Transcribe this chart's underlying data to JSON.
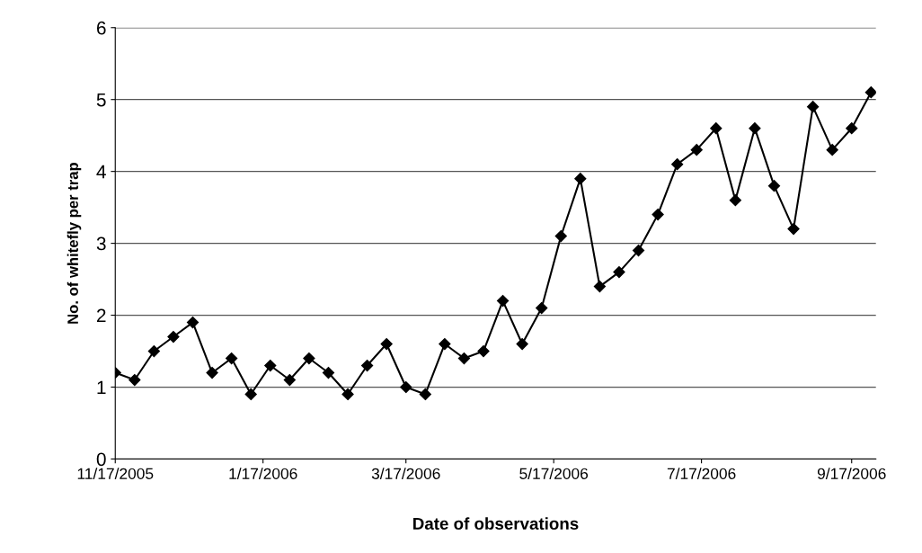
{
  "chart_data": {
    "type": "line",
    "xlabel": "Date of observations",
    "ylabel": "No. of whitefly per trap",
    "x": [
      "2005-11-17",
      "2005-11-25",
      "2005-12-03",
      "2005-12-11",
      "2005-12-19",
      "2005-12-27",
      "2006-01-04",
      "2006-01-12",
      "2006-01-20",
      "2006-01-28",
      "2006-02-05",
      "2006-02-13",
      "2006-02-21",
      "2006-03-01",
      "2006-03-09",
      "2006-03-17",
      "2006-03-25",
      "2006-04-02",
      "2006-04-10",
      "2006-04-18",
      "2006-04-26",
      "2006-05-04",
      "2006-05-12",
      "2006-05-20",
      "2006-05-28",
      "2006-06-05",
      "2006-06-13",
      "2006-06-21",
      "2006-06-29",
      "2006-07-07",
      "2006-07-15",
      "2006-07-23",
      "2006-07-31",
      "2006-08-08",
      "2006-08-16",
      "2006-08-24",
      "2006-09-01",
      "2006-09-09",
      "2006-09-17",
      "2006-09-25"
    ],
    "series": [
      {
        "color": "#000000",
        "values": [
          1.2,
          1.1,
          1.5,
          1.7,
          1.9,
          1.2,
          1.4,
          0.9,
          1.3,
          1.1,
          1.4,
          1.2,
          0.9,
          1.3,
          1.6,
          1.0,
          0.9,
          1.6,
          1.4,
          1.5,
          2.2,
          1.6,
          2.1,
          3.1,
          3.9,
          2.4,
          2.6,
          2.9,
          3.4,
          4.1,
          4.3,
          4.6,
          3.6,
          4.6,
          3.8,
          3.2,
          4.9,
          4.3,
          4.6,
          5.1
        ]
      }
    ],
    "xlim": [
      "2005-11-17",
      "2006-09-27"
    ],
    "xticks": [
      {
        "value": "2005-11-17",
        "label": "11/17/2005"
      },
      {
        "value": "2006-01-17",
        "label": "1/17/2006"
      },
      {
        "value": "2006-03-17",
        "label": "3/17/2006"
      },
      {
        "value": "2006-05-17",
        "label": "5/17/2006"
      },
      {
        "value": "2006-07-17",
        "label": "7/17/2006"
      },
      {
        "value": "2006-09-17",
        "label": "9/17/2006"
      }
    ],
    "ylim": [
      0,
      6
    ],
    "yticks": [
      0,
      1,
      2,
      3,
      4,
      5,
      6
    ],
    "grid": "y",
    "marker": "diamond",
    "line_style": "solid"
  }
}
